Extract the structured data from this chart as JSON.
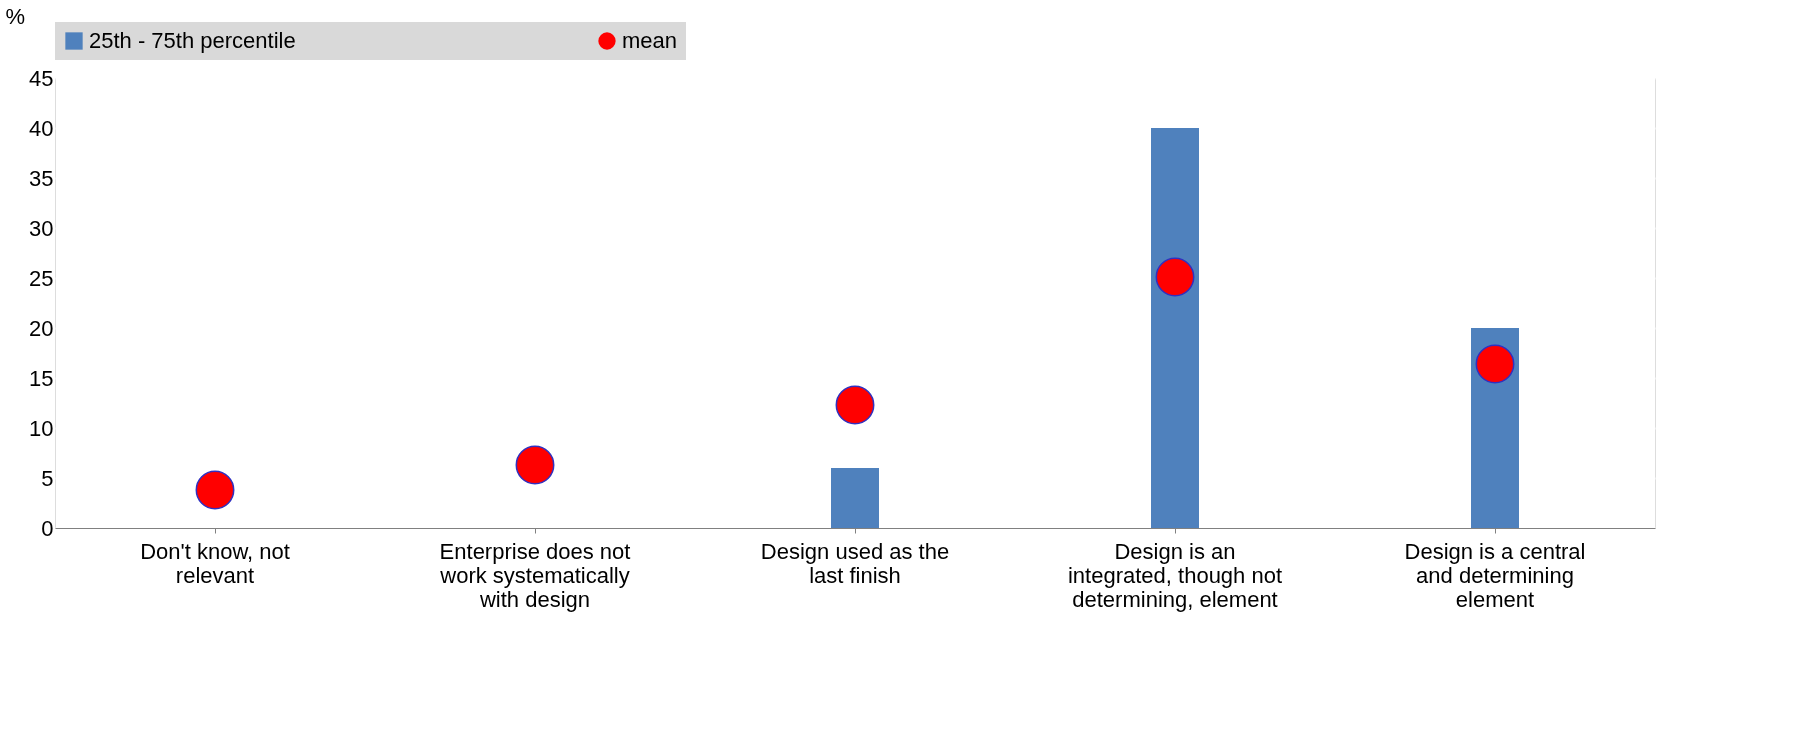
{
  "chart_data": {
    "type": "bar",
    "ylabel": "%",
    "categories": [
      "Don't know, not relevant",
      "Enterprise does not work systematically with design",
      "Design used as the last finish",
      "Design is an integrated, though not determining, element",
      "Design is a central and determining element"
    ],
    "series": [
      {
        "name": "25th - 75th percentile",
        "color": "#4f81bd",
        "values": [
          0,
          0,
          6,
          40,
          20
        ]
      },
      {
        "name": "mean",
        "type": "scatter",
        "marker": "circle",
        "color": "#ff0000",
        "values": [
          3.8,
          6.3,
          12.3,
          25.1,
          16.4
        ]
      }
    ],
    "ylim": [
      0,
      45
    ],
    "yticks": [
      0,
      5,
      10,
      15,
      20,
      25,
      30,
      35,
      40,
      45
    ],
    "grid": "y",
    "legend": "top"
  }
}
